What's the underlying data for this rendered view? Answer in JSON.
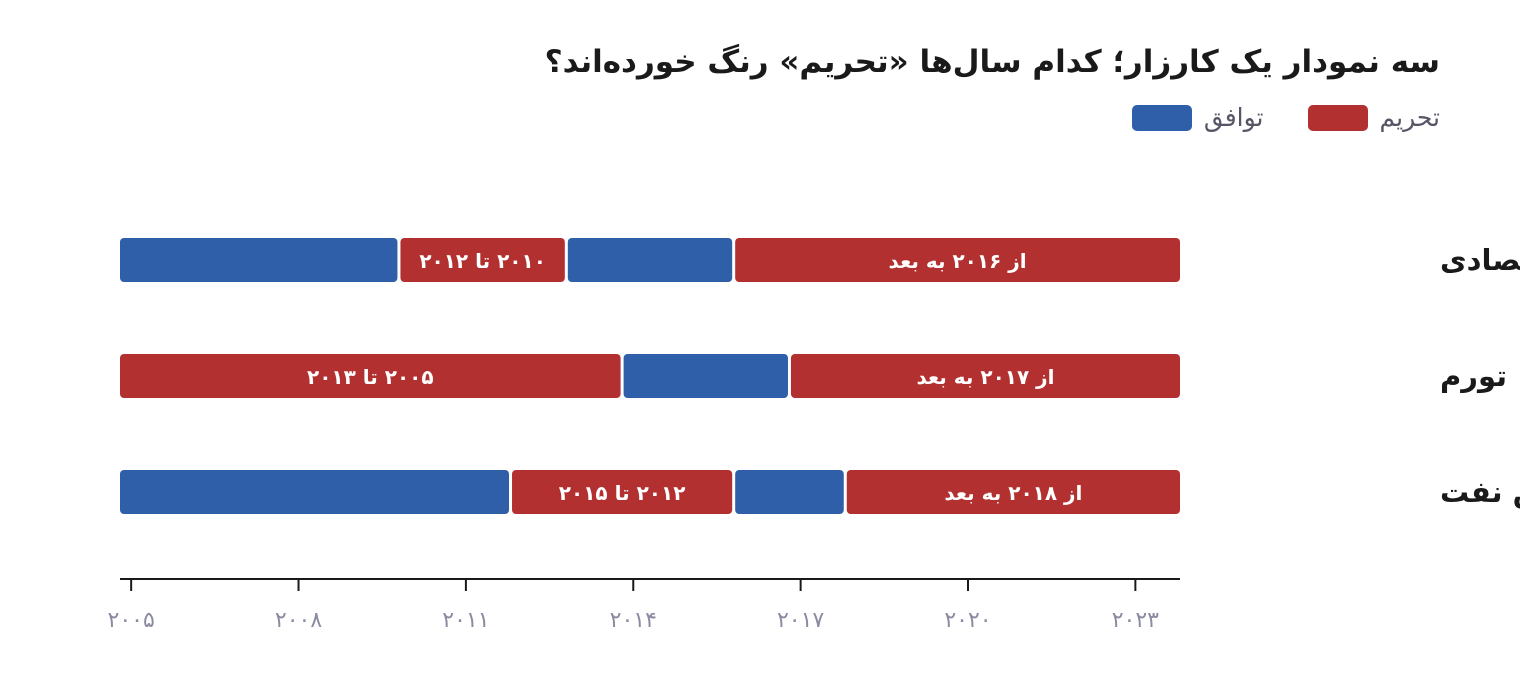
{
  "title": "سه نمودار یک کارزار؛ کدام سال‌ها «تحریم» رنگ خورده‌اند؟",
  "legend": {
    "agreement": "توافق",
    "sanctions": "تحریم"
  },
  "colors": {
    "agreement": "#2f5fa8",
    "sanctions": "#b33030",
    "axis": "#1a1a1a",
    "tick_label": "#8a8aa0"
  },
  "chart_data": {
    "type": "bar",
    "orientation": "horizontal-timeline",
    "x_range": [
      2004.8,
      2023.8
    ],
    "x_ticks": [
      2005,
      2008,
      2011,
      2014,
      2017,
      2020,
      2023
    ],
    "x_tick_labels": [
      "۲۰۰۵",
      "۲۰۰۸",
      "۲۰۱۱",
      "۲۰۱۴",
      "۲۰۱۷",
      "۲۰۲۰",
      "۲۰۲۳"
    ],
    "rows": [
      {
        "label": "رشد اقتصادی",
        "segments": [
          {
            "start": 2004.8,
            "end": 2009.8,
            "type": "agreement",
            "label": ""
          },
          {
            "start": 2009.8,
            "end": 2012.8,
            "type": "sanctions",
            "label": "۲۰۱۰ تا ۲۰۱۲"
          },
          {
            "start": 2012.8,
            "end": 2015.8,
            "type": "agreement",
            "label": ""
          },
          {
            "start": 2015.8,
            "end": 2023.8,
            "type": "sanctions",
            "label": "از ۲۰۱۶ به بعد"
          }
        ]
      },
      {
        "label": "تورم",
        "segments": [
          {
            "start": 2004.8,
            "end": 2013.8,
            "type": "sanctions",
            "label": "۲۰۰۵ تا ۲۰۱۳"
          },
          {
            "start": 2013.8,
            "end": 2016.8,
            "type": "agreement",
            "label": ""
          },
          {
            "start": 2016.8,
            "end": 2023.8,
            "type": "sanctions",
            "label": "از ۲۰۱۷ به بعد"
          }
        ]
      },
      {
        "label": "فروش نفت",
        "segments": [
          {
            "start": 2004.8,
            "end": 2011.8,
            "type": "agreement",
            "label": ""
          },
          {
            "start": 2011.8,
            "end": 2015.8,
            "type": "sanctions",
            "label": "۲۰۱۲ تا ۲۰۱۵"
          },
          {
            "start": 2015.8,
            "end": 2017.8,
            "type": "agreement",
            "label": ""
          },
          {
            "start": 2017.8,
            "end": 2023.8,
            "type": "sanctions",
            "label": "از ۲۰۱۸ به بعد"
          }
        ]
      }
    ]
  }
}
